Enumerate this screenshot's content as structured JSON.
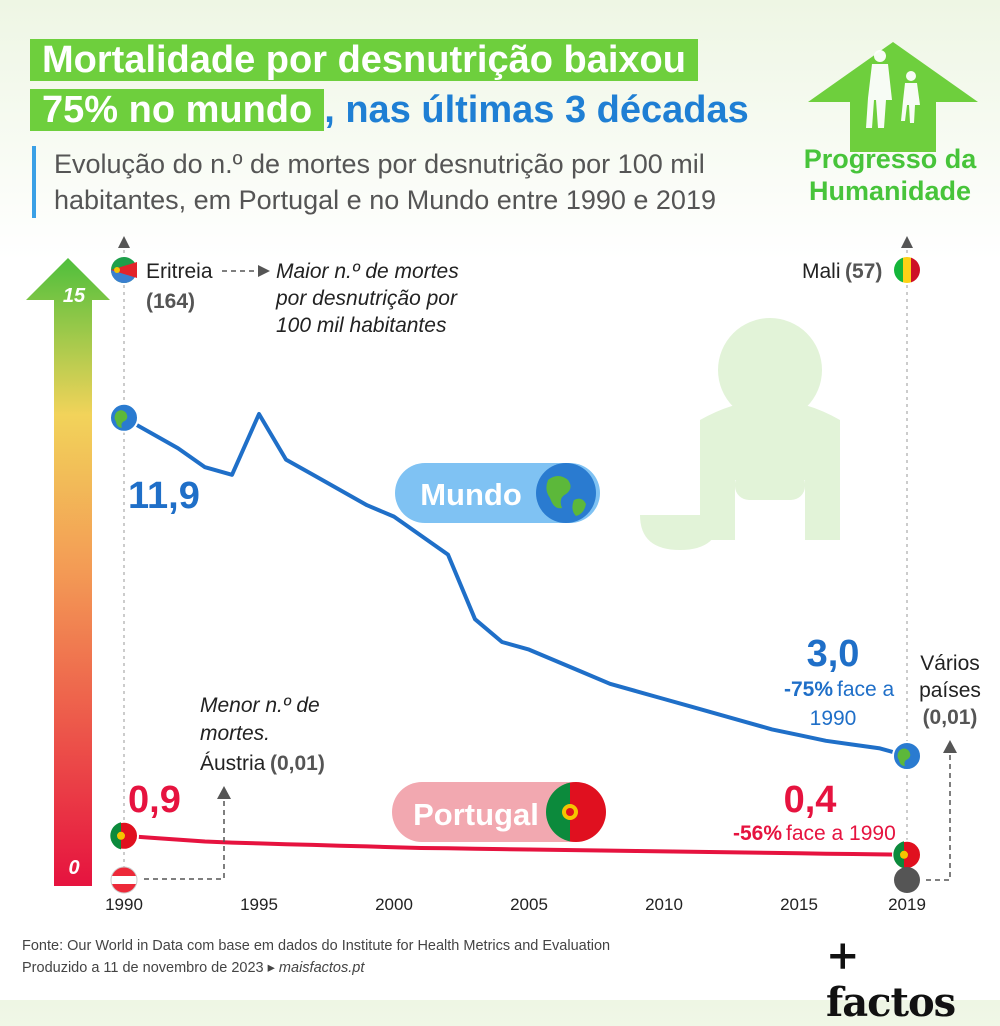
{
  "header": {
    "title_line1": "Mortalidade por desnutrição baixou",
    "title_line2_highlight": "75% no mundo",
    "title_line2_rest": ", nas últimas 3 décadas",
    "subtitle": "Evolução do n.º de mortes por desnutrição por 100 mil habitantes, em Portugal e no Mundo entre 1990 e 2019"
  },
  "brand": {
    "line1": "Progresso da",
    "line2": "Humanidade"
  },
  "colors": {
    "world": "#1f6fc8",
    "portugal": "#e6133f",
    "green": "#6ecf3d",
    "accent_blue": "#1f7fd4"
  },
  "chart_data": {
    "type": "line",
    "x": [
      1990,
      1991,
      1992,
      1993,
      1994,
      1995,
      1996,
      1997,
      1998,
      1999,
      2000,
      2001,
      2002,
      2003,
      2004,
      2005,
      2006,
      2007,
      2008,
      2009,
      2010,
      2011,
      2012,
      2013,
      2014,
      2015,
      2016,
      2017,
      2018,
      2019
    ],
    "series": [
      {
        "name": "Mundo",
        "values": [
          11.9,
          11.5,
          11.1,
          10.6,
          10.4,
          12.0,
          10.8,
          10.4,
          10.0,
          9.6,
          9.3,
          8.8,
          8.3,
          6.6,
          6.0,
          5.8,
          5.5,
          5.2,
          4.9,
          4.7,
          4.5,
          4.3,
          4.1,
          3.9,
          3.7,
          3.55,
          3.4,
          3.3,
          3.2,
          3.0
        ]
      },
      {
        "name": "Portugal",
        "values": [
          0.9,
          0.85,
          0.8,
          0.75,
          0.72,
          0.7,
          0.68,
          0.66,
          0.64,
          0.62,
          0.6,
          0.58,
          0.57,
          0.56,
          0.55,
          0.54,
          0.53,
          0.52,
          0.51,
          0.5,
          0.49,
          0.48,
          0.47,
          0.46,
          0.45,
          0.44,
          0.43,
          0.42,
          0.41,
          0.4
        ]
      }
    ],
    "ylim": [
      0,
      15
    ],
    "xlim": [
      1990,
      2019
    ],
    "x_ticks": [
      "1990",
      "1995",
      "2000",
      "2005",
      "2010",
      "2015",
      "2019"
    ],
    "y_ticks": [
      "15",
      "0"
    ],
    "labels": {
      "world_start": "11,9",
      "world_end": "3,0",
      "world_change_pct": "-75%",
      "world_change_text1": "face a",
      "world_change_text2": "1990",
      "pt_start": "0,9",
      "pt_end": "0,4",
      "pt_change_pct": "-56%",
      "pt_change_text": "face a 1990",
      "world_tag": "Mundo",
      "pt_tag": "Portugal",
      "max_country": "Eritreia",
      "max_value": "(164)",
      "max_note_1": "Maior n.º de mortes",
      "max_note_2": "por desnutrição por",
      "max_note_3": "100 mil habitantes",
      "max_2019_country": "Mali",
      "max_2019_value": "(57)",
      "min_note_1": "Menor n.º de",
      "min_note_2": "mortes.",
      "min_country": "Áustria",
      "min_value": "(0,01)",
      "min_2019_1": "Vários",
      "min_2019_2": "países",
      "min_2019_value": "(0,01)"
    }
  },
  "footer": {
    "source": "Fonte: Our World in Data com base em dados do Institute for Health Metrics and Evaluation",
    "produced": "Produzido a 11 de novembro de 2023 ▸",
    "site": "maisfactos.pt",
    "logo": "+ factos"
  }
}
